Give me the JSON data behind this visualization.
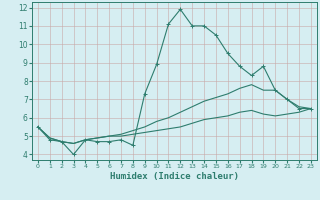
{
  "xlabel": "Humidex (Indice chaleur)",
  "bg_color": "#d6eef2",
  "grid_color": "#c8dde0",
  "line_color": "#2e7d6e",
  "xlim": [
    -0.5,
    23.5
  ],
  "ylim": [
    3.7,
    12.3
  ],
  "yticks": [
    4,
    5,
    6,
    7,
    8,
    9,
    10,
    11,
    12
  ],
  "xticks": [
    0,
    1,
    2,
    3,
    4,
    5,
    6,
    7,
    8,
    9,
    10,
    11,
    12,
    13,
    14,
    15,
    16,
    17,
    18,
    19,
    20,
    21,
    22,
    23
  ],
  "series1_x": [
    0,
    1,
    2,
    3,
    4,
    5,
    6,
    7,
    8,
    9,
    10,
    11,
    12,
    13,
    14,
    15,
    16,
    17,
    18,
    19,
    20,
    21,
    22,
    23
  ],
  "series1_y": [
    5.5,
    4.8,
    4.7,
    4.0,
    4.8,
    4.7,
    4.7,
    4.8,
    4.5,
    7.3,
    8.9,
    11.1,
    11.9,
    11.0,
    11.0,
    10.5,
    9.5,
    8.8,
    8.3,
    8.8,
    7.5,
    7.0,
    6.5,
    6.5
  ],
  "series2_x": [
    0,
    1,
    2,
    3,
    4,
    5,
    6,
    7,
    8,
    9,
    10,
    11,
    12,
    13,
    14,
    15,
    16,
    17,
    18,
    19,
    20,
    21,
    22,
    23
  ],
  "series2_y": [
    5.5,
    4.9,
    4.7,
    4.6,
    4.8,
    4.9,
    5.0,
    5.1,
    5.3,
    5.5,
    5.8,
    6.0,
    6.3,
    6.6,
    6.9,
    7.1,
    7.3,
    7.6,
    7.8,
    7.5,
    7.5,
    7.0,
    6.6,
    6.5
  ],
  "series3_x": [
    0,
    1,
    2,
    3,
    4,
    5,
    6,
    7,
    8,
    9,
    10,
    11,
    12,
    13,
    14,
    15,
    16,
    17,
    18,
    19,
    20,
    21,
    22,
    23
  ],
  "series3_y": [
    5.5,
    4.9,
    4.7,
    4.6,
    4.8,
    4.9,
    5.0,
    5.0,
    5.1,
    5.2,
    5.3,
    5.4,
    5.5,
    5.7,
    5.9,
    6.0,
    6.1,
    6.3,
    6.4,
    6.2,
    6.1,
    6.2,
    6.3,
    6.5
  ]
}
